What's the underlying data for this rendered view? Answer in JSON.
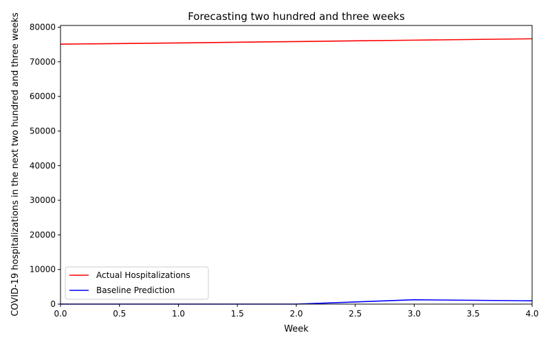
{
  "chart_data": {
    "type": "line",
    "title": "Forecasting two hundred and three weeks",
    "xlabel": "Week",
    "ylabel": "COVID-19 hospitalizations in the next two hundred and three weeks",
    "xlim": [
      0,
      4
    ],
    "ylim": [
      0,
      80500
    ],
    "xticks": [
      0.0,
      0.5,
      1.0,
      1.5,
      2.0,
      2.5,
      3.0,
      3.5,
      4.0
    ],
    "xtick_labels": [
      "0.0",
      "0.5",
      "1.0",
      "1.5",
      "2.0",
      "2.5",
      "3.0",
      "3.5",
      "4.0"
    ],
    "yticks": [
      0,
      10000,
      20000,
      30000,
      40000,
      50000,
      60000,
      70000,
      80000
    ],
    "ytick_labels": [
      "0",
      "10000",
      "20000",
      "30000",
      "40000",
      "50000",
      "60000",
      "70000",
      "80000"
    ],
    "grid": false,
    "legend_position": "lower-left",
    "x": [
      0,
      1,
      2,
      3,
      4
    ],
    "series": [
      {
        "name": "Actual Hospitalizations",
        "color": "#ff0000",
        "values": [
          75100,
          75450,
          75850,
          76250,
          76650
        ]
      },
      {
        "name": "Baseline Prediction",
        "color": "#0000ff",
        "values": [
          0,
          0,
          0,
          1250,
          950
        ]
      }
    ]
  }
}
